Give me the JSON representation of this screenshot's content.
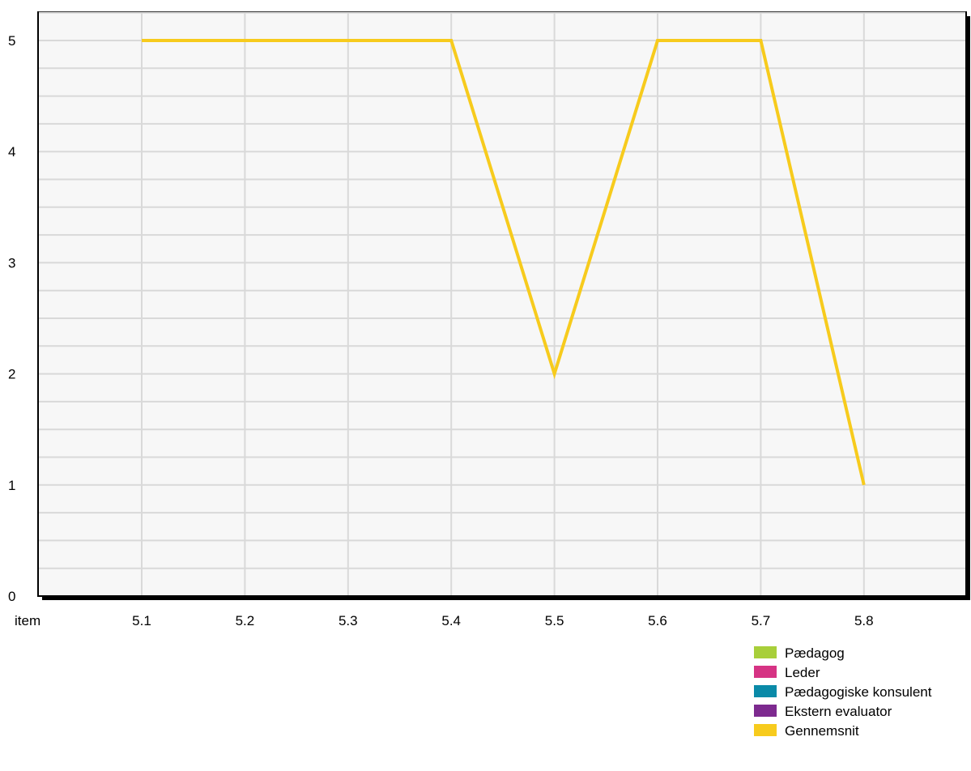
{
  "chart_data": {
    "type": "line",
    "x_label": "item",
    "categories": [
      "5.1",
      "5.2",
      "5.3",
      "5.4",
      "5.5",
      "5.6",
      "5.7",
      "5.8"
    ],
    "y_ticks": [
      "0",
      "1",
      "2",
      "3",
      "4",
      "5"
    ],
    "ylim": [
      0,
      5.25
    ],
    "grid": true,
    "series": [
      {
        "name": "Gennemsnit",
        "color": "#f7cb1d",
        "values": [
          5,
          5,
          5,
          5,
          2,
          5,
          5,
          1
        ]
      }
    ],
    "legend": {
      "placement": "bottom-right",
      "items": [
        {
          "label": "Pædagog",
          "color": "#a8cf3a"
        },
        {
          "label": "Leder",
          "color": "#d63384"
        },
        {
          "label": "Pædagogiske konsulent",
          "color": "#0a8aa8"
        },
        {
          "label": "Ekstern evaluator",
          "color": "#7d2a8f"
        },
        {
          "label": "Gennemsnit",
          "color": "#f7cb1d"
        }
      ]
    },
    "colors": {
      "plot_background": "#f7f7f7",
      "grid": "#d9d9d9",
      "frame": "#000000"
    }
  }
}
